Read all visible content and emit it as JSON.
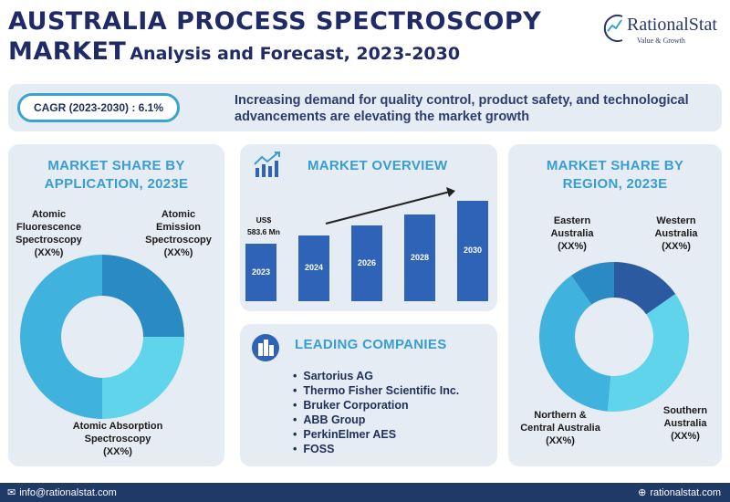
{
  "title": {
    "line1": "AUSTRALIA PROCESS SPECTROSCOPY",
    "line2_big": "MARKET",
    "line2_small": "Analysis and Forecast, 2023-2030"
  },
  "logo": {
    "name": "RationalStat",
    "tagline": "Value & Growth"
  },
  "banner": {
    "cagr": "CAGR (2023-2030) : 6.1%",
    "text": "Increasing demand for quality control, product safety, and technological advancements are elevating the market growth"
  },
  "application": {
    "heading_line1": "MARKET SHARE BY",
    "heading_line2": "APPLICATION, 2023E",
    "segments": [
      {
        "line1": "Atomic",
        "line2": "Fluorescence",
        "line3": "Spectroscopy",
        "value": "(XX%)",
        "color": "#3fb2dd"
      },
      {
        "line1": "Atomic",
        "line2": "Emission",
        "line3": "Spectroscopy",
        "value": "(XX%)",
        "color": "#2a8bc4"
      },
      {
        "line1": "Atomic Absorption",
        "line2": "Spectroscopy",
        "value": "(XX%)",
        "color": "#5fd4ea"
      }
    ]
  },
  "overview": {
    "heading": "MARKET OVERVIEW",
    "value_label_line1": "US$",
    "value_label_line2": "583.6 Mn",
    "bar_color": "#2f63b8",
    "bars": [
      {
        "year": "2023"
      },
      {
        "year": "2024"
      },
      {
        "year": "2026"
      },
      {
        "year": "2028"
      },
      {
        "year": "2030"
      }
    ]
  },
  "companies": {
    "heading": "LEADING COMPANIES",
    "items": [
      "Sartorius AG",
      "Thermo Fisher Scientific Inc.",
      "Bruker Corporation",
      "ABB Group",
      "PerkinElmer AES",
      "FOSS"
    ]
  },
  "region": {
    "heading_line1": "MARKET SHARE BY",
    "heading_line2": "REGION, 2023E",
    "segments": [
      {
        "line1": "Eastern",
        "line2": "Australia",
        "value": "(XX%)",
        "color": "#2a8bc4"
      },
      {
        "line1": "Western",
        "line2": "Australia",
        "value": "(XX%)",
        "color": "#2c5aa0"
      },
      {
        "line1": "Southern",
        "line2": "Australia",
        "value": "(XX%)",
        "color": "#5fd4ea"
      },
      {
        "line1": "Northern &",
        "line2": "Central Australia",
        "value": "(XX%)",
        "color": "#3fb2dd"
      }
    ]
  },
  "footer": {
    "email": "info@rationalstat.com",
    "website": "rationalstat.com"
  }
}
